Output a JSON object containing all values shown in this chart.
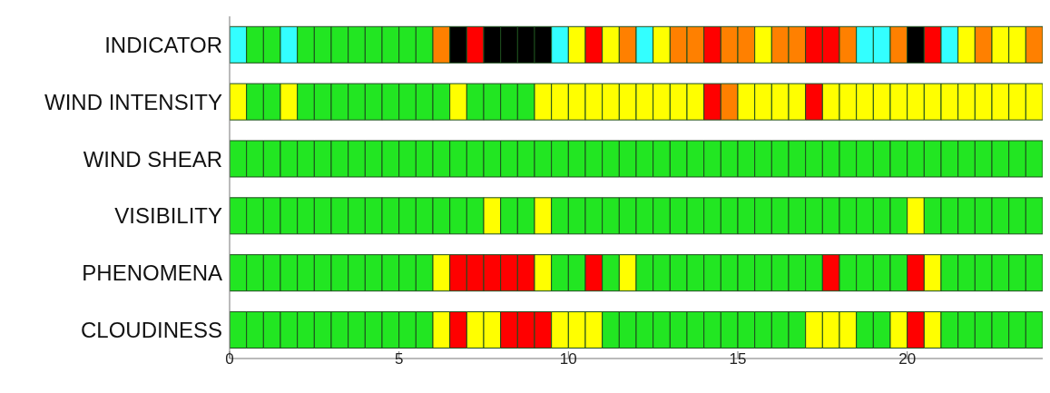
{
  "chart_data": {
    "type": "bar",
    "orientation": "horizontal",
    "stacked": true,
    "grid": false,
    "legend": false,
    "categories": [
      "INDICATOR",
      "WIND INTENSITY",
      "WIND SHEAR",
      "VISIBILITY",
      "PHENOMENA",
      "CLOUDINESS"
    ],
    "xlim": [
      0,
      24
    ],
    "xticks": [
      0,
      5,
      10,
      15,
      20
    ],
    "series": [
      {
        "values": [
          0.5,
          0.5,
          0.5,
          0.5,
          0.5,
          0.5
        ],
        "colors": [
          "#33ffff",
          "#ffff00",
          "#22e622",
          "#22e622",
          "#22e622",
          "#22e622"
        ]
      },
      {
        "values": [
          0.5,
          0.5,
          0.5,
          0.5,
          0.5,
          0.5
        ],
        "colors": [
          "#22e622",
          "#22e622",
          "#22e622",
          "#22e622",
          "#22e622",
          "#22e622"
        ]
      },
      {
        "values": [
          0.5,
          0.5,
          0.5,
          0.5,
          0.5,
          0.5
        ],
        "colors": [
          "#22e622",
          "#22e622",
          "#22e622",
          "#22e622",
          "#22e622",
          "#22e622"
        ]
      },
      {
        "values": [
          0.5,
          0.5,
          0.5,
          0.5,
          0.5,
          0.5
        ],
        "colors": [
          "#33ffff",
          "#ffff00",
          "#22e622",
          "#22e622",
          "#22e622",
          "#22e622"
        ]
      },
      {
        "values": [
          0.5,
          0.5,
          0.5,
          0.5,
          0.5,
          0.5
        ],
        "colors": [
          "#22e622",
          "#22e622",
          "#22e622",
          "#22e622",
          "#22e622",
          "#22e622"
        ]
      },
      {
        "values": [
          0.5,
          0.5,
          0.5,
          0.5,
          0.5,
          0.5
        ],
        "colors": [
          "#22e622",
          "#22e622",
          "#22e622",
          "#22e622",
          "#22e622",
          "#22e622"
        ]
      },
      {
        "values": [
          0.5,
          0.5,
          0.5,
          0.5,
          0.5,
          0.5
        ],
        "colors": [
          "#22e622",
          "#22e622",
          "#22e622",
          "#22e622",
          "#22e622",
          "#22e622"
        ]
      },
      {
        "values": [
          0.5,
          0.5,
          0.5,
          0.5,
          0.5,
          0.5
        ],
        "colors": [
          "#22e622",
          "#22e622",
          "#22e622",
          "#22e622",
          "#22e622",
          "#22e622"
        ]
      },
      {
        "values": [
          0.5,
          0.5,
          0.5,
          0.5,
          0.5,
          0.5
        ],
        "colors": [
          "#22e622",
          "#22e622",
          "#22e622",
          "#22e622",
          "#22e622",
          "#22e622"
        ]
      },
      {
        "values": [
          0.5,
          0.5,
          0.5,
          0.5,
          0.5,
          0.5
        ],
        "colors": [
          "#22e622",
          "#22e622",
          "#22e622",
          "#22e622",
          "#22e622",
          "#22e622"
        ]
      },
      {
        "values": [
          0.5,
          0.5,
          0.5,
          0.5,
          0.5,
          0.5
        ],
        "colors": [
          "#22e622",
          "#22e622",
          "#22e622",
          "#22e622",
          "#22e622",
          "#22e622"
        ]
      },
      {
        "values": [
          0.5,
          0.5,
          0.5,
          0.5,
          0.5,
          0.5
        ],
        "colors": [
          "#22e622",
          "#22e622",
          "#22e622",
          "#22e622",
          "#22e622",
          "#22e622"
        ]
      },
      {
        "values": [
          0.5,
          0.5,
          0.5,
          0.5,
          0.5,
          0.5
        ],
        "colors": [
          "#ff8000",
          "#22e622",
          "#22e622",
          "#22e622",
          "#ffff00",
          "#ffff00"
        ]
      },
      {
        "values": [
          0.5,
          0.5,
          0.5,
          0.5,
          0.5,
          0.5
        ],
        "colors": [
          "#000000",
          "#ffff00",
          "#22e622",
          "#22e622",
          "#ff0000",
          "#ff0000"
        ]
      },
      {
        "values": [
          0.5,
          0.5,
          0.5,
          0.5,
          0.5,
          0.5
        ],
        "colors": [
          "#ff0000",
          "#22e622",
          "#22e622",
          "#22e622",
          "#ff0000",
          "#ffff00"
        ]
      },
      {
        "values": [
          0.5,
          0.5,
          0.5,
          0.5,
          0.5,
          0.5
        ],
        "colors": [
          "#000000",
          "#22e622",
          "#22e622",
          "#ffff00",
          "#ff0000",
          "#ffff00"
        ]
      },
      {
        "values": [
          0.5,
          0.5,
          0.5,
          0.5,
          0.5,
          0.5
        ],
        "colors": [
          "#000000",
          "#22e622",
          "#22e622",
          "#22e622",
          "#ff0000",
          "#ff0000"
        ]
      },
      {
        "values": [
          0.5,
          0.5,
          0.5,
          0.5,
          0.5,
          0.5
        ],
        "colors": [
          "#000000",
          "#22e622",
          "#22e622",
          "#22e622",
          "#ff0000",
          "#ff0000"
        ]
      },
      {
        "values": [
          0.5,
          0.5,
          0.5,
          0.5,
          0.5,
          0.5
        ],
        "colors": [
          "#000000",
          "#ffff00",
          "#22e622",
          "#ffff00",
          "#ffff00",
          "#ff0000"
        ]
      },
      {
        "values": [
          0.5,
          0.5,
          0.5,
          0.5,
          0.5,
          0.5
        ],
        "colors": [
          "#33ffff",
          "#ffff00",
          "#22e622",
          "#22e622",
          "#22e622",
          "#ffff00"
        ]
      },
      {
        "values": [
          0.5,
          0.5,
          0.5,
          0.5,
          0.5,
          0.5
        ],
        "colors": [
          "#ffff00",
          "#ffff00",
          "#22e622",
          "#22e622",
          "#22e622",
          "#ffff00"
        ]
      },
      {
        "values": [
          0.5,
          0.5,
          0.5,
          0.5,
          0.5,
          0.5
        ],
        "colors": [
          "#ff0000",
          "#ffff00",
          "#22e622",
          "#22e622",
          "#ff0000",
          "#ffff00"
        ]
      },
      {
        "values": [
          0.5,
          0.5,
          0.5,
          0.5,
          0.5,
          0.5
        ],
        "colors": [
          "#ffff00",
          "#ffff00",
          "#22e622",
          "#22e622",
          "#22e622",
          "#22e622"
        ]
      },
      {
        "values": [
          0.5,
          0.5,
          0.5,
          0.5,
          0.5,
          0.5
        ],
        "colors": [
          "#ff8000",
          "#ffff00",
          "#22e622",
          "#22e622",
          "#ffff00",
          "#22e622"
        ]
      },
      {
        "values": [
          0.5,
          0.5,
          0.5,
          0.5,
          0.5,
          0.5
        ],
        "colors": [
          "#33ffff",
          "#ffff00",
          "#22e622",
          "#22e622",
          "#22e622",
          "#22e622"
        ]
      },
      {
        "values": [
          0.5,
          0.5,
          0.5,
          0.5,
          0.5,
          0.5
        ],
        "colors": [
          "#ffff00",
          "#ffff00",
          "#22e622",
          "#22e622",
          "#22e622",
          "#22e622"
        ]
      },
      {
        "values": [
          0.5,
          0.5,
          0.5,
          0.5,
          0.5,
          0.5
        ],
        "colors": [
          "#ff8000",
          "#ffff00",
          "#22e622",
          "#22e622",
          "#22e622",
          "#22e622"
        ]
      },
      {
        "values": [
          0.5,
          0.5,
          0.5,
          0.5,
          0.5,
          0.5
        ],
        "colors": [
          "#ff8000",
          "#ffff00",
          "#22e622",
          "#22e622",
          "#22e622",
          "#22e622"
        ]
      },
      {
        "values": [
          0.5,
          0.5,
          0.5,
          0.5,
          0.5,
          0.5
        ],
        "colors": [
          "#ff0000",
          "#ff0000",
          "#22e622",
          "#22e622",
          "#22e622",
          "#22e622"
        ]
      },
      {
        "values": [
          0.5,
          0.5,
          0.5,
          0.5,
          0.5,
          0.5
        ],
        "colors": [
          "#ff8000",
          "#ff8000",
          "#22e622",
          "#22e622",
          "#22e622",
          "#22e622"
        ]
      },
      {
        "values": [
          0.5,
          0.5,
          0.5,
          0.5,
          0.5,
          0.5
        ],
        "colors": [
          "#ff8000",
          "#ffff00",
          "#22e622",
          "#22e622",
          "#22e622",
          "#22e622"
        ]
      },
      {
        "values": [
          0.5,
          0.5,
          0.5,
          0.5,
          0.5,
          0.5
        ],
        "colors": [
          "#ffff00",
          "#ffff00",
          "#22e622",
          "#22e622",
          "#22e622",
          "#22e622"
        ]
      },
      {
        "values": [
          0.5,
          0.5,
          0.5,
          0.5,
          0.5,
          0.5
        ],
        "colors": [
          "#ff8000",
          "#ffff00",
          "#22e622",
          "#22e622",
          "#22e622",
          "#22e622"
        ]
      },
      {
        "values": [
          0.5,
          0.5,
          0.5,
          0.5,
          0.5,
          0.5
        ],
        "colors": [
          "#ff8000",
          "#ffff00",
          "#22e622",
          "#22e622",
          "#22e622",
          "#22e622"
        ]
      },
      {
        "values": [
          0.5,
          0.5,
          0.5,
          0.5,
          0.5,
          0.5
        ],
        "colors": [
          "#ff0000",
          "#ff0000",
          "#22e622",
          "#22e622",
          "#22e622",
          "#ffff00"
        ]
      },
      {
        "values": [
          0.5,
          0.5,
          0.5,
          0.5,
          0.5,
          0.5
        ],
        "colors": [
          "#ff0000",
          "#ffff00",
          "#22e622",
          "#22e622",
          "#ff0000",
          "#ffff00"
        ]
      },
      {
        "values": [
          0.5,
          0.5,
          0.5,
          0.5,
          0.5,
          0.5
        ],
        "colors": [
          "#ff8000",
          "#ffff00",
          "#22e622",
          "#22e622",
          "#22e622",
          "#ffff00"
        ]
      },
      {
        "values": [
          0.5,
          0.5,
          0.5,
          0.5,
          0.5,
          0.5
        ],
        "colors": [
          "#33ffff",
          "#ffff00",
          "#22e622",
          "#22e622",
          "#22e622",
          "#22e622"
        ]
      },
      {
        "values": [
          0.5,
          0.5,
          0.5,
          0.5,
          0.5,
          0.5
        ],
        "colors": [
          "#33ffff",
          "#ffff00",
          "#22e622",
          "#22e622",
          "#22e622",
          "#22e622"
        ]
      },
      {
        "values": [
          0.5,
          0.5,
          0.5,
          0.5,
          0.5,
          0.5
        ],
        "colors": [
          "#ff8000",
          "#ffff00",
          "#22e622",
          "#22e622",
          "#22e622",
          "#ffff00"
        ]
      },
      {
        "values": [
          0.5,
          0.5,
          0.5,
          0.5,
          0.5,
          0.5
        ],
        "colors": [
          "#000000",
          "#ffff00",
          "#22e622",
          "#ffff00",
          "#ff0000",
          "#ff0000"
        ]
      },
      {
        "values": [
          0.5,
          0.5,
          0.5,
          0.5,
          0.5,
          0.5
        ],
        "colors": [
          "#ff0000",
          "#ffff00",
          "#22e622",
          "#22e622",
          "#ffff00",
          "#ffff00"
        ]
      },
      {
        "values": [
          0.5,
          0.5,
          0.5,
          0.5,
          0.5,
          0.5
        ],
        "colors": [
          "#33ffff",
          "#ffff00",
          "#22e622",
          "#22e622",
          "#22e622",
          "#22e622"
        ]
      },
      {
        "values": [
          0.5,
          0.5,
          0.5,
          0.5,
          0.5,
          0.5
        ],
        "colors": [
          "#ffff00",
          "#ffff00",
          "#22e622",
          "#22e622",
          "#22e622",
          "#22e622"
        ]
      },
      {
        "values": [
          0.5,
          0.5,
          0.5,
          0.5,
          0.5,
          0.5
        ],
        "colors": [
          "#ff8000",
          "#ffff00",
          "#22e622",
          "#22e622",
          "#22e622",
          "#22e622"
        ]
      },
      {
        "values": [
          0.5,
          0.5,
          0.5,
          0.5,
          0.5,
          0.5
        ],
        "colors": [
          "#ffff00",
          "#ffff00",
          "#22e622",
          "#22e622",
          "#22e622",
          "#22e622"
        ]
      },
      {
        "values": [
          0.5,
          0.5,
          0.5,
          0.5,
          0.5,
          0.5
        ],
        "colors": [
          "#ffff00",
          "#ffff00",
          "#22e622",
          "#22e622",
          "#22e622",
          "#22e622"
        ]
      },
      {
        "values": [
          0.5,
          0.5,
          0.5,
          0.5,
          0.5,
          0.5
        ],
        "colors": [
          "#ff8000",
          "#ffff00",
          "#22e622",
          "#22e622",
          "#22e622",
          "#22e622"
        ]
      }
    ]
  }
}
